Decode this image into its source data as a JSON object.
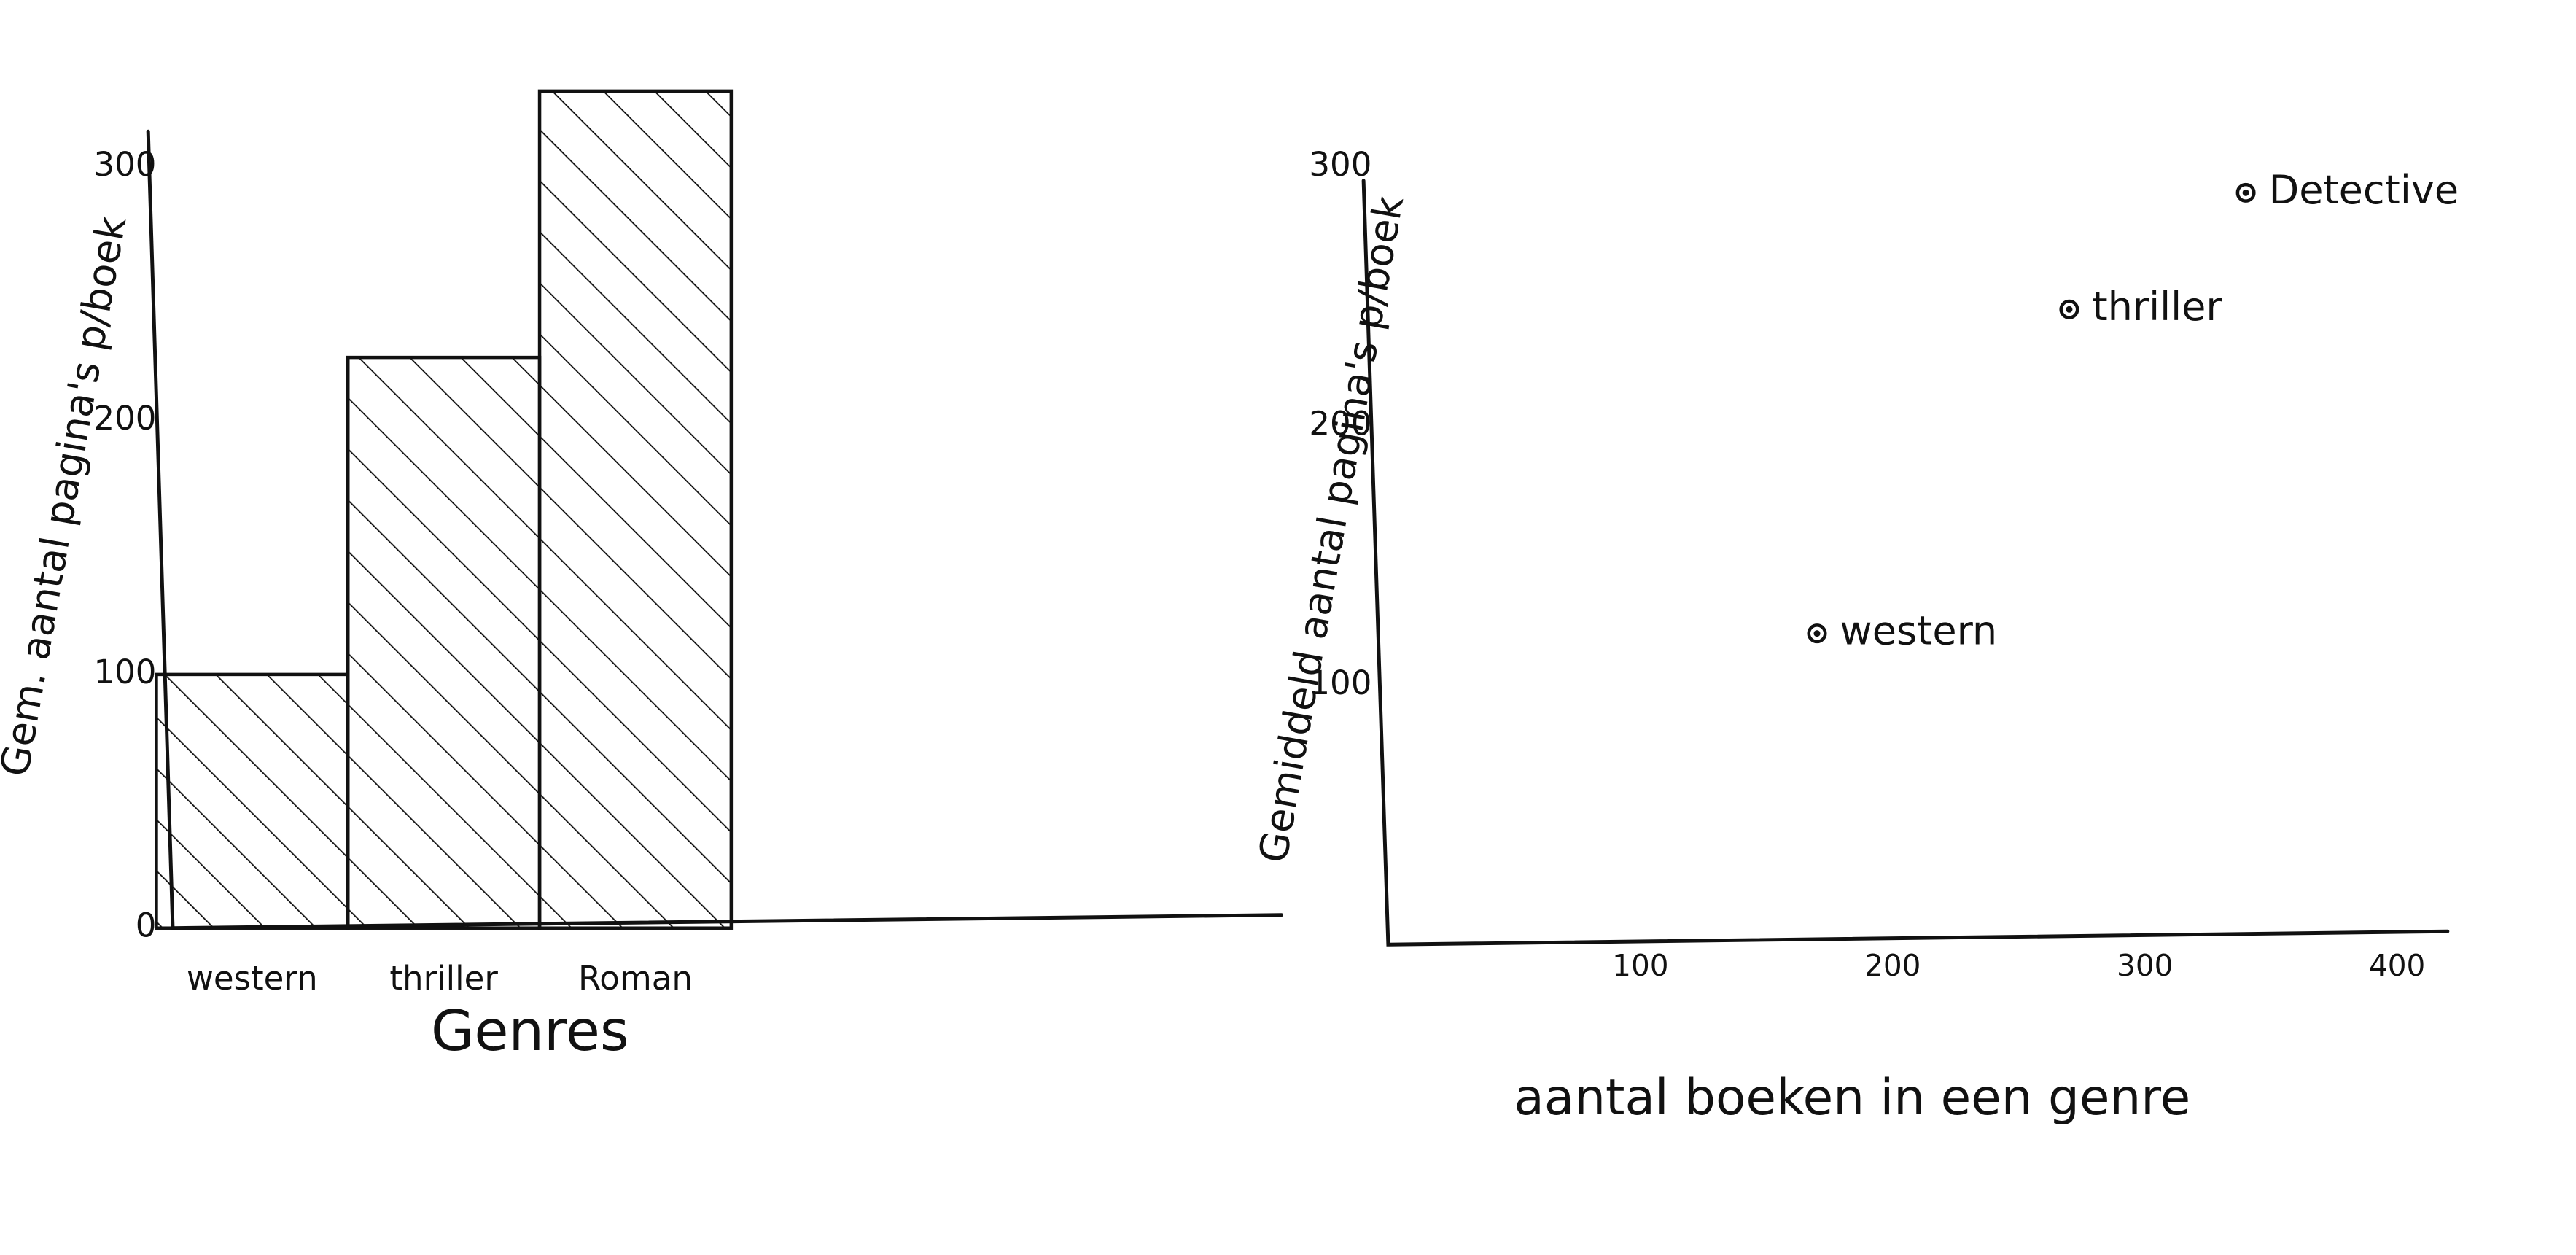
{
  "chart_data": [
    {
      "type": "bar",
      "x_label": "Genres",
      "y_label": "Gem. aantal pagina's p/boek",
      "categories": [
        "western",
        "thriller",
        "Roman"
      ],
      "values": [
        100,
        225,
        330
      ],
      "color": "#111111",
      "ylim": [
        0,
        340
      ],
      "yticks": [
        0,
        100,
        200,
        300
      ],
      "grid": false
    },
    {
      "type": "scatter",
      "x_label": "aantal boeken in een genre",
      "y_label": "Gemiddeld aantal pagina's p/boek",
      "labels": [
        "western",
        "thriller",
        "Detective"
      ],
      "x": [
        170,
        270,
        340
      ],
      "values": [
        120,
        245,
        290
      ],
      "color": "#111111",
      "xlim": [
        0,
        420
      ],
      "xticks": [
        100,
        200,
        300,
        400
      ],
      "ylim": [
        0,
        320
      ],
      "yticks": [
        100,
        200,
        300
      ],
      "grid": false
    }
  ]
}
